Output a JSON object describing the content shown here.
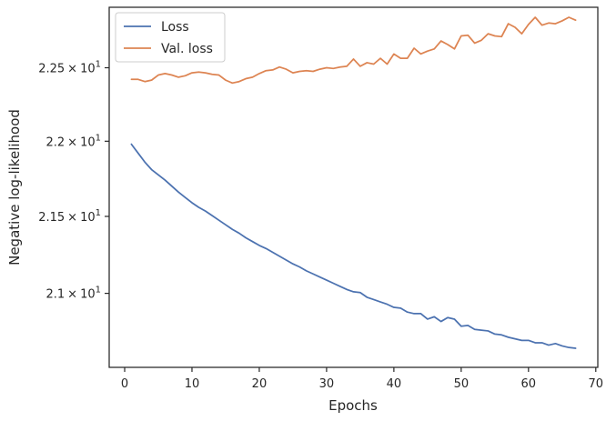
{
  "chart_data": {
    "type": "line",
    "title": "",
    "xlabel": "Epochs",
    "ylabel": "Negative log-likelihood",
    "xlim": [
      -2.3,
      70.3
    ],
    "ylim": [
      20.53,
      22.92
    ],
    "yscale": "log",
    "grid": false,
    "legend_position": "top-left",
    "x_ticks": [
      {
        "value": 0,
        "label": "0"
      },
      {
        "value": 10,
        "label": "10"
      },
      {
        "value": 20,
        "label": "20"
      },
      {
        "value": 30,
        "label": "30"
      },
      {
        "value": 40,
        "label": "40"
      },
      {
        "value": 50,
        "label": "50"
      },
      {
        "value": 60,
        "label": "60"
      },
      {
        "value": 70,
        "label": "70"
      }
    ],
    "y_ticks": [
      {
        "value": 21.0,
        "mantissa": "2.1",
        "times": "×",
        "base": "10",
        "exponent": "1"
      },
      {
        "value": 21.5,
        "mantissa": "2.15",
        "times": "×",
        "base": "10",
        "exponent": "1"
      },
      {
        "value": 22.0,
        "mantissa": "2.2",
        "times": "×",
        "base": "10",
        "exponent": "1"
      },
      {
        "value": 22.5,
        "mantissa": "2.25",
        "times": "×",
        "base": "10",
        "exponent": "1"
      }
    ],
    "series": [
      {
        "name": "Loss",
        "color": "#4c72b0",
        "x": [
          1,
          2,
          3,
          4,
          5,
          6,
          7,
          8,
          9,
          10,
          11,
          12,
          13,
          14,
          15,
          16,
          17,
          18,
          19,
          20,
          21,
          22,
          23,
          24,
          25,
          26,
          27,
          28,
          29,
          30,
          31,
          32,
          33,
          34,
          35,
          36,
          37,
          38,
          39,
          40,
          41,
          42,
          43,
          44,
          45,
          46,
          47,
          48,
          49,
          50,
          51,
          52,
          53,
          54,
          55,
          56,
          57,
          58,
          59,
          60,
          61,
          62,
          63,
          64,
          65,
          66,
          67
        ],
        "y": [
          21.98,
          21.92,
          21.86,
          21.81,
          21.775,
          21.74,
          21.7,
          21.66,
          21.625,
          21.59,
          21.56,
          21.535,
          21.505,
          21.475,
          21.445,
          21.415,
          21.39,
          21.36,
          21.335,
          21.31,
          21.29,
          21.265,
          21.24,
          21.215,
          21.19,
          21.17,
          21.145,
          21.125,
          21.105,
          21.085,
          21.065,
          21.045,
          21.025,
          21.01,
          21.005,
          20.975,
          20.96,
          20.945,
          20.93,
          20.91,
          20.905,
          20.88,
          20.87,
          20.87,
          20.835,
          20.85,
          20.82,
          20.845,
          20.835,
          20.79,
          20.795,
          20.77,
          20.765,
          20.76,
          20.74,
          20.735,
          20.72,
          20.71,
          20.7,
          20.7,
          20.685,
          20.685,
          20.67,
          20.68,
          20.665,
          20.655,
          20.65
        ]
      },
      {
        "name": "Val. loss",
        "color": "#dd8452",
        "x": [
          1,
          2,
          3,
          4,
          5,
          6,
          7,
          8,
          9,
          10,
          11,
          12,
          13,
          14,
          15,
          16,
          17,
          18,
          19,
          20,
          21,
          22,
          23,
          24,
          25,
          26,
          27,
          28,
          29,
          30,
          31,
          32,
          33,
          34,
          35,
          36,
          37,
          38,
          39,
          40,
          41,
          42,
          43,
          44,
          45,
          46,
          47,
          48,
          49,
          50,
          51,
          52,
          53,
          54,
          55,
          56,
          57,
          58,
          59,
          60,
          61,
          62,
          63,
          64,
          65,
          66,
          67
        ],
        "y": [
          22.42,
          22.42,
          22.405,
          22.415,
          22.45,
          22.46,
          22.45,
          22.435,
          22.445,
          22.465,
          22.47,
          22.465,
          22.455,
          22.45,
          22.415,
          22.395,
          22.405,
          22.425,
          22.435,
          22.46,
          22.48,
          22.485,
          22.505,
          22.49,
          22.465,
          22.475,
          22.48,
          22.475,
          22.49,
          22.5,
          22.495,
          22.505,
          22.51,
          22.56,
          22.51,
          22.535,
          22.525,
          22.565,
          22.525,
          22.595,
          22.565,
          22.565,
          22.635,
          22.595,
          22.615,
          22.63,
          22.685,
          22.66,
          22.63,
          22.72,
          22.725,
          22.67,
          22.69,
          22.735,
          22.72,
          22.715,
          22.805,
          22.78,
          22.735,
          22.8,
          22.85,
          22.795,
          22.81,
          22.805,
          22.825,
          22.85,
          22.83
        ]
      }
    ]
  }
}
